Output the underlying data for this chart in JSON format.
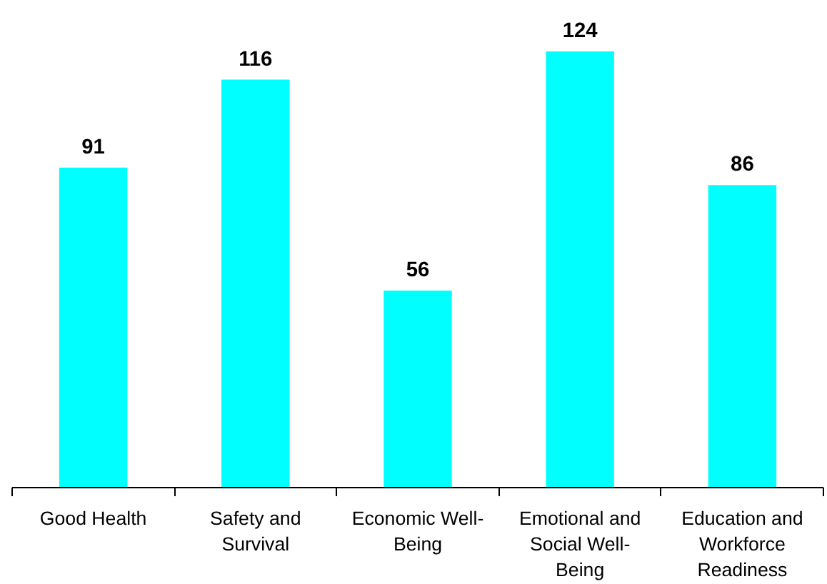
{
  "chart_data": {
    "type": "bar",
    "categories": [
      "Good Health",
      "Safety and Survival",
      "Economic Well-Being",
      "Emotional and Social Well-Being",
      "Education and Workforce Readiness"
    ],
    "values": [
      91,
      116,
      56,
      124,
      86
    ],
    "color": "#00ffff",
    "data_labels": true
  }
}
